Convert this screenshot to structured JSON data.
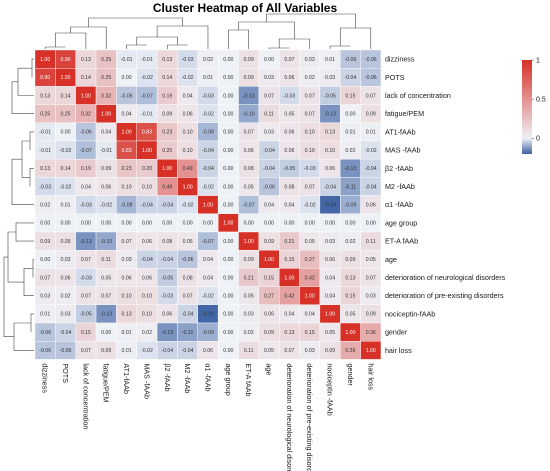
{
  "chart_data": {
    "type": "heatmap",
    "title": "Cluster Heatmap of All Variables",
    "row_labels": [
      "dizziness",
      "POTS",
      "lack of concentration",
      "fatigue/PEM",
      "AT1-fAAb",
      "MAS -fAAb",
      "β2 -fAAb",
      "M2 -fAAb",
      "α1 -fAAb",
      "age group",
      "ET-A fAAb",
      "age",
      "deterioration of neurological disorders",
      "deterioration of pre-existing disorders",
      "nociceptin-fAAb",
      "gender",
      "hair loss"
    ],
    "col_labels": [
      "dizziness",
      "POTS",
      "lack of concentration",
      "fatigue/PEM",
      "AT1-fAAb",
      "MAS -fAAb",
      "β2 -fAAb",
      "M2 -fAAb",
      "α1 -fAAb",
      "age group",
      "ET-A fAAb",
      "age",
      "deterioration of neurological disorders",
      "deterioration of pre-existing disorders",
      "nociceptin -fAAb",
      "gender",
      "hair loss"
    ],
    "cell_labels": [
      [
        "1.00",
        "0.90",
        "0.13",
        "0.25",
        "-0.01",
        "-0.01",
        "0.13",
        "-0.03",
        "0.02",
        "0.00",
        "0.09",
        "0.00",
        "0.07",
        "0.03",
        "0.01",
        "-0.06",
        "-0.06"
      ],
      [
        "0.90",
        "1.00",
        "0.14",
        "0.25",
        "0.00",
        "-0.02",
        "0.14",
        "-0.02",
        "0.01",
        "0.00",
        "0.09",
        "0.03",
        "0.06",
        "0.02",
        "0.03",
        "-0.04",
        "-0.06"
      ],
      [
        "0.13",
        "0.14",
        "1.00",
        "0.32",
        "-0.06",
        "-0.07",
        "0.19",
        "0.04",
        "-0.03",
        "0.00",
        "-0.13",
        "0.07",
        "-0.03",
        "0.07",
        "-0.05",
        "0.15",
        "0.07"
      ],
      [
        "0.25",
        "0.25",
        "0.32",
        "1.00",
        "0.04",
        "-0.01",
        "0.09",
        "0.06",
        "-0.02",
        "0.00",
        "-0.10",
        "0.11",
        "0.05",
        "0.07",
        "-0.13",
        "0.00",
        "0.09"
      ],
      [
        "-0.01",
        "0.00",
        "-0.06",
        "0.04",
        "1.00",
        "0.83",
        "0.23",
        "0.10",
        "-0.08",
        "0.00",
        "0.07",
        "0.03",
        "0.06",
        "0.10",
        "0.13",
        "0.01",
        "0.01"
      ],
      [
        "-0.01",
        "-0.02",
        "-0.07",
        "-0.01",
        "0.83",
        "1.00",
        "0.20",
        "0.10",
        "-0.04",
        "0.00",
        "0.06",
        "-0.04",
        "0.06",
        "0.10",
        "0.10",
        "0.02",
        "-0.02"
      ],
      [
        "0.13",
        "0.14",
        "0.19",
        "0.09",
        "0.23",
        "0.20",
        "1.00",
        "0.49",
        "-0.04",
        "0.00",
        "0.08",
        "-0.04",
        "-0.05",
        "-0.03",
        "0.06",
        "-0.13",
        "-0.04"
      ],
      [
        "-0.03",
        "-0.02",
        "0.04",
        "0.06",
        "0.10",
        "0.10",
        "0.49",
        "1.00",
        "-0.02",
        "0.00",
        "0.05",
        "-0.06",
        "0.08",
        "0.07",
        "-0.04",
        "-0.11",
        "-0.04"
      ],
      [
        "0.02",
        "0.01",
        "-0.03",
        "-0.02",
        "-0.08",
        "-0.04",
        "-0.04",
        "-0.02",
        "1.00",
        "0.00",
        "-0.07",
        "0.04",
        "0.04",
        "-0.02",
        "-0.19",
        "-0.09",
        "0.06"
      ],
      [
        "0.00",
        "0.00",
        "0.00",
        "0.00",
        "0.00",
        "0.00",
        "0.00",
        "0.00",
        "0.00",
        "1.00",
        "0.00",
        "0.00",
        "0.00",
        "0.00",
        "0.00",
        "0.00",
        "0.00"
      ],
      [
        "0.09",
        "0.09",
        "-0.13",
        "-0.10",
        "0.07",
        "0.06",
        "0.08",
        "0.05",
        "-0.07",
        "0.00",
        "1.00",
        "0.09",
        "0.21",
        "0.05",
        "0.03",
        "0.02",
        "0.11"
      ],
      [
        "0.00",
        "0.03",
        "0.07",
        "0.11",
        "0.03",
        "-0.04",
        "-0.04",
        "-0.06",
        "0.04",
        "0.00",
        "0.09",
        "1.00",
        "0.15",
        "0.27",
        "0.06",
        "0.09",
        "0.05"
      ],
      [
        "0.07",
        "0.06",
        "-0.03",
        "0.05",
        "0.06",
        "0.06",
        "-0.05",
        "0.08",
        "0.04",
        "0.00",
        "0.21",
        "0.15",
        "1.00",
        "0.42",
        "0.04",
        "0.13",
        "0.07"
      ],
      [
        "0.03",
        "0.02",
        "0.07",
        "0.07",
        "0.10",
        "0.10",
        "-0.03",
        "0.07",
        "-0.02",
        "0.00",
        "0.05",
        "0.27",
        "0.42",
        "1.00",
        "0.04",
        "0.15",
        "0.03"
      ],
      [
        "0.01",
        "0.03",
        "-0.05",
        "-0.13",
        "0.13",
        "0.10",
        "0.06",
        "-0.04",
        "-0.19",
        "0.00",
        "0.03",
        "0.06",
        "0.04",
        "0.04",
        "1.00",
        "0.05",
        "0.09"
      ],
      [
        "-0.06",
        "-0.04",
        "0.15",
        "0.00",
        "0.01",
        "0.02",
        "-0.13",
        "-0.11",
        "-0.09",
        "0.00",
        "0.02",
        "0.09",
        "0.13",
        "0.15",
        "0.05",
        "1.00",
        "0.36"
      ],
      [
        "-0.06",
        "-0.06",
        "0.07",
        "0.09",
        "0.01",
        "-0.02",
        "-0.04",
        "-0.04",
        "0.06",
        "0.00",
        "0.11",
        "0.05",
        "0.07",
        "0.03",
        "0.09",
        "0.36",
        "1.00"
      ]
    ],
    "legend_ticks": [
      "1",
      "0.5",
      "0"
    ],
    "legend_range": [
      -0.2,
      1
    ],
    "colors": {
      "low": "#3a5fa3",
      "mid": "#eef1f6",
      "high": "#d73027"
    }
  }
}
